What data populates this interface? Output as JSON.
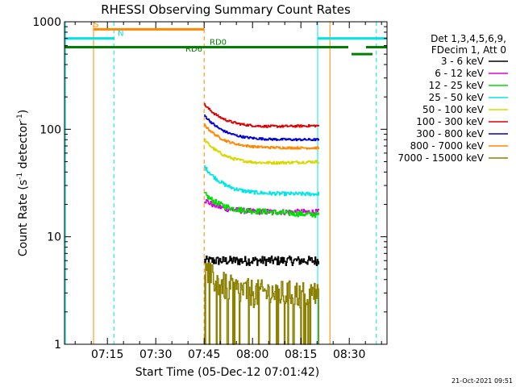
{
  "chart_data": {
    "type": "line",
    "title": "RHESSI Observing Summary Count Rates",
    "xlabel": "Start Time (05-Dec-12 07:01:42)",
    "ylabel_main": "Count Rate (s",
    "ylabel_sup1": "-1",
    "ylabel_mid": " detector",
    "ylabel_sup2": "-1",
    "ylabel_end": ")",
    "y_scale": "log",
    "ylim": [
      1,
      1000
    ],
    "xlim_minutes": [
      0,
      100
    ],
    "x_ticks": [
      {
        "t": 13.3,
        "label": "07:15"
      },
      {
        "t": 28.3,
        "label": "07:30"
      },
      {
        "t": 43.3,
        "label": "07:45"
      },
      {
        "t": 58.3,
        "label": "08:00"
      },
      {
        "t": 73.3,
        "label": "08:15"
      },
      {
        "t": 88.3,
        "label": "08:30"
      }
    ],
    "y_ticks": [
      {
        "v": 1,
        "label": "1"
      },
      {
        "v": 10,
        "label": "10"
      },
      {
        "v": 100,
        "label": "100"
      },
      {
        "v": 1000,
        "label": "1000"
      }
    ],
    "legend_header": [
      "Det 1,3,4,5,6,9,",
      "FDecim 1, Att 0"
    ],
    "series": [
      {
        "name": "3 - 6 keV",
        "color": "#000000",
        "start": 6.0,
        "mid": 6.0,
        "end": 6.0,
        "noise": 0.1
      },
      {
        "name": "6 - 12 keV",
        "color": "#dd00dd",
        "start": 22,
        "mid": 17,
        "end": 17,
        "noise": 0.06
      },
      {
        "name": "12 - 25 keV",
        "color": "#00dd00",
        "start": 25,
        "mid": 17,
        "end": 16,
        "noise": 0.06
      },
      {
        "name": "25 - 50 keV",
        "color": "#00e5e5",
        "start": 45,
        "mid": 25,
        "end": 25,
        "noise": 0.04
      },
      {
        "name": "50 - 100 keV",
        "color": "#d8d800",
        "start": 80,
        "mid": 48,
        "end": 50,
        "noise": 0.03
      },
      {
        "name": "100 - 300 keV",
        "color": "#dd0000",
        "start": 170,
        "mid": 105,
        "end": 108,
        "noise": 0.025
      },
      {
        "name": "300 - 800 keV",
        "color": "#0000cc",
        "start": 135,
        "mid": 80,
        "end": 80,
        "noise": 0.025
      },
      {
        "name": "800 - 7000 keV",
        "color": "#ff8800",
        "start": 110,
        "mid": 67,
        "end": 67,
        "noise": 0.025
      },
      {
        "name": "7000 - 15000 keV",
        "color": "#8b8000",
        "start": 5.0,
        "mid": 3.0,
        "end": 3.0,
        "noise": 0.3
      }
    ],
    "data_range_minutes": [
      43.3,
      78.8
    ],
    "status_bars": [
      {
        "label": "S",
        "color": "#ff8800",
        "segments": [
          [
            9.0,
            43.3
          ]
        ],
        "v": 850,
        "label_at": 9.0
      },
      {
        "label": "N",
        "color": "#00e5e5",
        "segments": [
          [
            0,
            15.5
          ],
          [
            78.5,
            100
          ]
        ],
        "v": 700,
        "label_at": 16.5
      },
      {
        "label": "RD0",
        "color": "#008000",
        "segments": [
          [
            0,
            88.0
          ],
          [
            93.5,
            100
          ]
        ],
        "v": 580,
        "label_at": 45.0
      },
      {
        "label": "RD6",
        "color": "#008000",
        "segments": [
          [
            89.0,
            95.5
          ]
        ],
        "v": 500,
        "label_at": 37.5
      }
    ],
    "vertical_lines": [
      {
        "t": 0.3,
        "color": "#00e5e5",
        "style": "solid"
      },
      {
        "t": 9.0,
        "color": "#ff8800",
        "style": "solid"
      },
      {
        "t": 15.3,
        "color": "#00e5e5",
        "style": "dashed"
      },
      {
        "t": 43.3,
        "color": "#ff8800",
        "style": "dashed"
      },
      {
        "t": 78.5,
        "color": "#00e5e5",
        "style": "solid"
      },
      {
        "t": 82.3,
        "color": "#ff8800",
        "style": "solid"
      },
      {
        "t": 96.7,
        "color": "#00e5e5",
        "style": "dashed"
      }
    ],
    "footer": "21-Oct-2021 09:51"
  }
}
